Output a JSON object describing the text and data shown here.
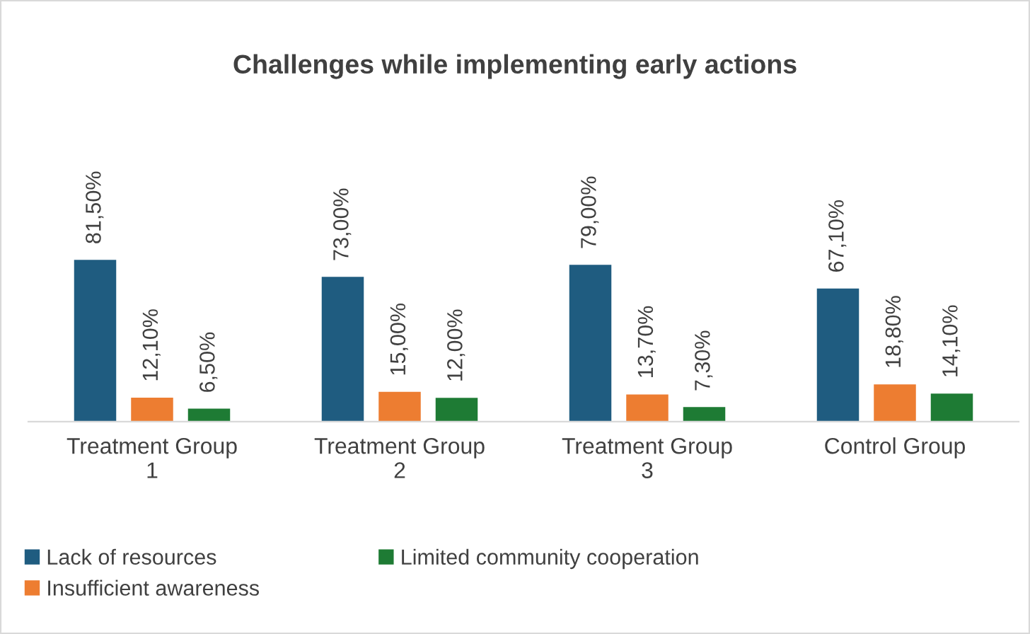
{
  "chart_data": {
    "type": "bar",
    "title": "Challenges while implementing early actions",
    "categories": [
      "Treatment Group 1",
      "Treatment Group 2",
      "Treatment Group 3",
      "Control Group"
    ],
    "series": [
      {
        "name": "Lack of resources",
        "color": "#1f5c80",
        "values": [
          81.5,
          73.0,
          79.0,
          67.1
        ],
        "value_labels": [
          "81,50%",
          "73,00%",
          "79,00%",
          "67,10%"
        ]
      },
      {
        "name": "Insufficient awareness",
        "color": "#ed7d31",
        "values": [
          12.1,
          15.0,
          13.7,
          18.8
        ],
        "value_labels": [
          "12,10%",
          "15,00%",
          "13,70%",
          "18,80%"
        ]
      },
      {
        "name": "Limited community cooperation",
        "color": "#1e7b34",
        "values": [
          6.5,
          12.0,
          7.3,
          14.1
        ],
        "value_labels": [
          "6,50%",
          "12,00%",
          "7,30%",
          "14,10%"
        ]
      }
    ],
    "legend": "bottom",
    "grid": false
  }
}
